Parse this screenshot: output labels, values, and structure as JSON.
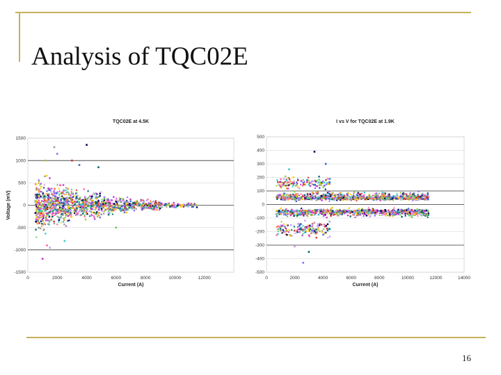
{
  "slide": {
    "title": "Analysis of TQC02E",
    "page_number": "16"
  },
  "palette": [
    "#cc33cc",
    "#9966ff",
    "#33cccc",
    "#99cc33",
    "#ffcc00",
    "#ff6699",
    "#000066",
    "#3366cc",
    "#66cc66",
    "#ff9933",
    "#999999",
    "#cc99ff",
    "#006666",
    "#cc3333"
  ],
  "chart_data": [
    {
      "type": "scatter",
      "title": "TQC02E at 4.5K",
      "xlabel": "Current (A)",
      "ylabel": "Voltage (mV)",
      "xlim": [
        0,
        14000
      ],
      "ylim": [
        -1500,
        1500
      ],
      "xticks": [
        0,
        2000,
        4000,
        6000,
        8000,
        10000,
        12000
      ],
      "yticks": [
        -1500,
        -1000,
        -500,
        0,
        500,
        1000,
        1500
      ],
      "dark_gridlines": [
        -1000,
        0,
        1000
      ],
      "grid": true,
      "legend": "none",
      "point_clouds": [
        {
          "x_range": [
            500,
            1500
          ],
          "y_range": [
            -800,
            800
          ],
          "count": 260
        },
        {
          "x_range": [
            1500,
            3000
          ],
          "y_range": [
            -550,
            550
          ],
          "count": 320
        },
        {
          "x_range": [
            3000,
            5000
          ],
          "y_range": [
            -400,
            420
          ],
          "count": 260
        },
        {
          "x_range": [
            5000,
            7000
          ],
          "y_range": [
            -250,
            250
          ],
          "count": 200
        },
        {
          "x_range": [
            7000,
            9000
          ],
          "y_range": [
            -150,
            150
          ],
          "count": 150
        },
        {
          "x_range": [
            9000,
            11500
          ],
          "y_range": [
            -80,
            80
          ],
          "count": 90
        }
      ],
      "outliers": [
        {
          "x": 1000,
          "y": -1200
        },
        {
          "x": 1300,
          "y": -900
        },
        {
          "x": 1800,
          "y": 1300
        },
        {
          "x": 2000,
          "y": 1150
        },
        {
          "x": 4000,
          "y": 1350
        },
        {
          "x": 1500,
          "y": -950
        },
        {
          "x": 2500,
          "y": -800
        },
        {
          "x": 3500,
          "y": 900
        },
        {
          "x": 4800,
          "y": 850
        },
        {
          "x": 1200,
          "y": 1000
        },
        {
          "x": 6000,
          "y": -500
        },
        {
          "x": 3000,
          "y": 1000
        }
      ]
    },
    {
      "type": "scatter",
      "title": "I vs V for TQC02E at 1.9K",
      "xlabel": "Current (A)",
      "ylabel": "",
      "xlim": [
        0,
        14000
      ],
      "ylim": [
        -500,
        500
      ],
      "xticks": [
        0,
        2000,
        4000,
        6000,
        8000,
        10000,
        12000,
        14000
      ],
      "yticks": [
        -500,
        -400,
        -300,
        -200,
        -100,
        0,
        100,
        200,
        300,
        400,
        500
      ],
      "dark_gridlines": [
        -300,
        0,
        100
      ],
      "grid": true,
      "legend": "none",
      "point_clouds": [
        {
          "x_range": [
            700,
            11500
          ],
          "y_range": [
            20,
            100
          ],
          "count": 520
        },
        {
          "x_range": [
            700,
            11500
          ],
          "y_range": [
            -100,
            -20
          ],
          "count": 520
        },
        {
          "x_range": [
            700,
            4500
          ],
          "y_range": [
            100,
            220
          ],
          "count": 140
        },
        {
          "x_range": [
            700,
            4500
          ],
          "y_range": [
            -260,
            -100
          ],
          "count": 160
        },
        {
          "x_range": [
            700,
            11500
          ],
          "y_range": [
            30,
            60
          ],
          "count": 300
        },
        {
          "x_range": [
            700,
            11500
          ],
          "y_range": [
            -60,
            -35
          ],
          "count": 260
        }
      ],
      "outliers": [
        {
          "x": 2600,
          "y": -430
        },
        {
          "x": 3400,
          "y": 390
        },
        {
          "x": 2000,
          "y": -310
        },
        {
          "x": 1600,
          "y": 260
        },
        {
          "x": 4200,
          "y": 300
        },
        {
          "x": 3000,
          "y": -350
        }
      ]
    }
  ]
}
